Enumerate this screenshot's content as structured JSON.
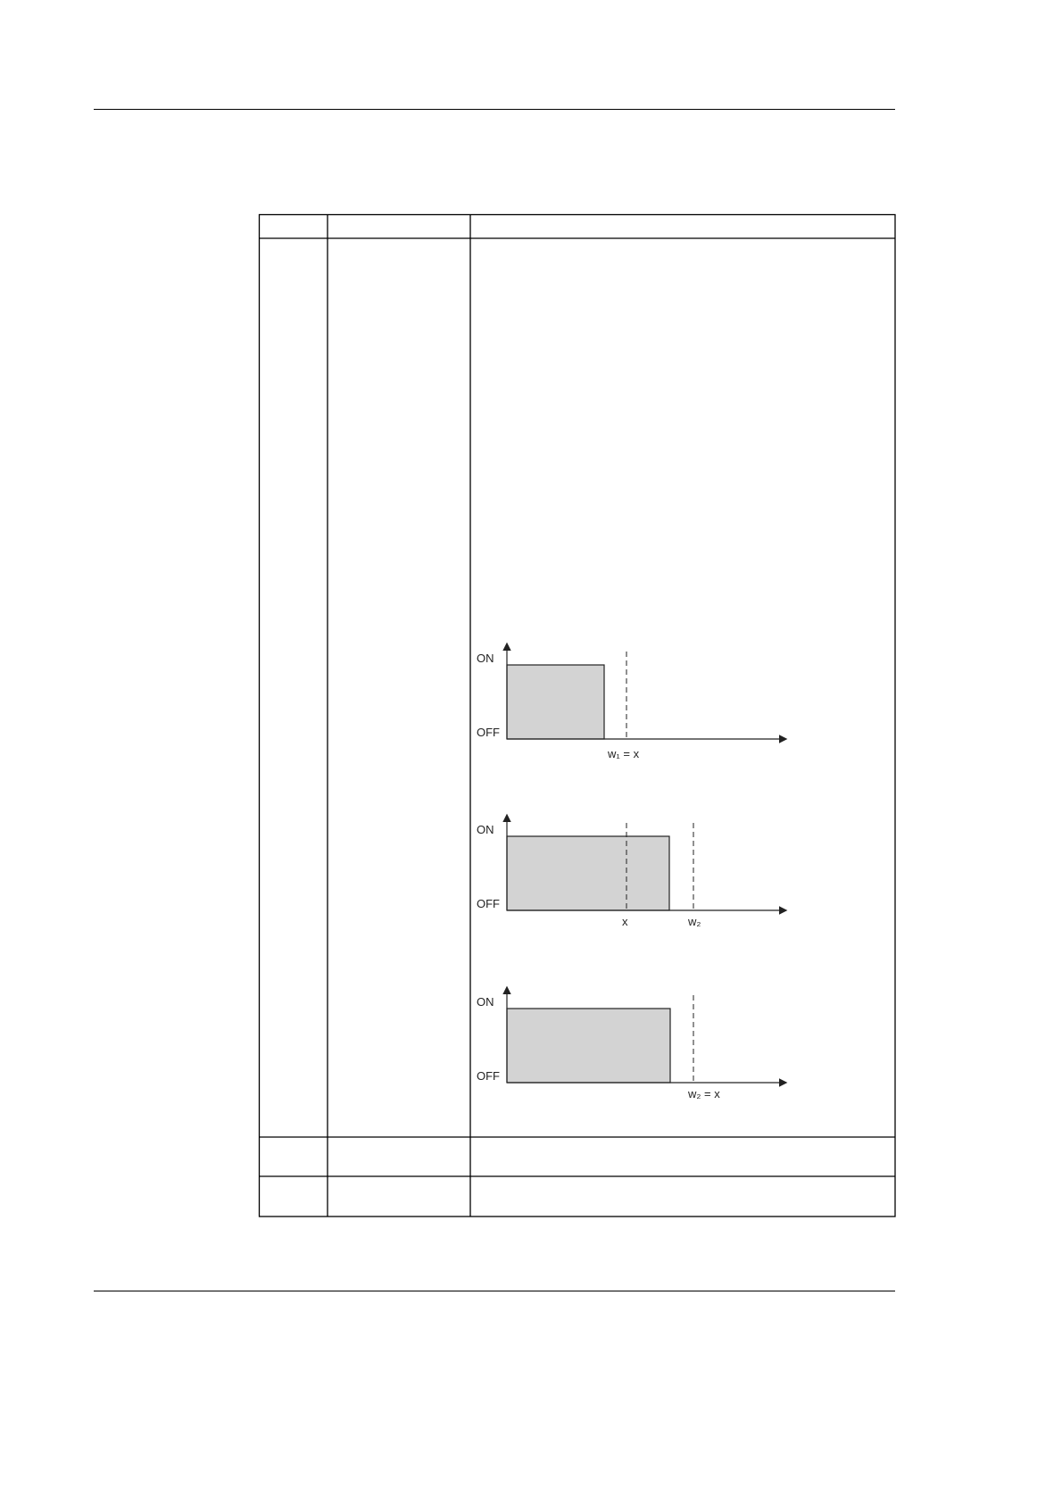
{
  "diagrams": [
    {
      "y_on": "ON",
      "y_off": "OFF",
      "x_label": "w₁ = x"
    },
    {
      "y_on": "ON",
      "y_off": "OFF",
      "x_label_a": "x",
      "x_label_b": "w₂"
    },
    {
      "y_on": "ON",
      "y_off": "OFF",
      "x_label": "w₂ = x"
    }
  ],
  "colors": {
    "fill": "#d3d3d3",
    "line": "#222222"
  }
}
